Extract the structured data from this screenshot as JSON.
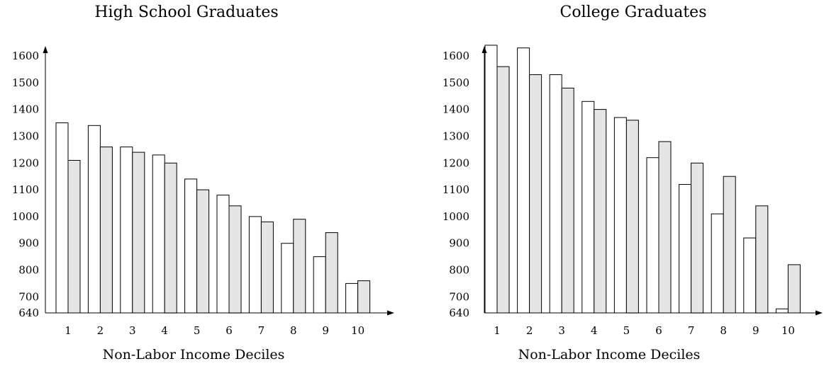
{
  "colors": {
    "bar_a": "#ffffff",
    "bar_b": "#e5e5e5",
    "stroke": "#000000"
  },
  "chart_data": [
    {
      "type": "bar",
      "title": "High School Graduates",
      "xlabel": "Non-Labor Income Deciles",
      "ylabel": "",
      "categories": [
        "1",
        "2",
        "3",
        "4",
        "5",
        "6",
        "7",
        "8",
        "9",
        "10"
      ],
      "series": [
        {
          "values": [
            1350,
            1340,
            1260,
            1230,
            1140,
            1080,
            1000,
            900,
            850,
            750
          ]
        },
        {
          "values": [
            1210,
            1260,
            1240,
            1200,
            1100,
            1040,
            980,
            990,
            940,
            760
          ]
        }
      ],
      "ylim": [
        640,
        1600
      ],
      "yticks": [
        "640",
        "700",
        "800",
        "900",
        "1000",
        "1100",
        "1200",
        "1300",
        "1400",
        "1500",
        "1600"
      ],
      "grid": false,
      "legend": "none"
    },
    {
      "type": "bar",
      "title": "College Graduates",
      "xlabel": "Non-Labor Income Deciles",
      "ylabel": "",
      "categories": [
        "1",
        "2",
        "3",
        "4",
        "5",
        "6",
        "7",
        "8",
        "9",
        "10"
      ],
      "series": [
        {
          "values": [
            1640,
            1630,
            1530,
            1430,
            1370,
            1220,
            1120,
            1010,
            920,
            655
          ]
        },
        {
          "values": [
            1560,
            1530,
            1480,
            1400,
            1360,
            1280,
            1200,
            1150,
            1040,
            820
          ]
        }
      ],
      "ylim": [
        640,
        1600
      ],
      "yticks": [
        "640",
        "700",
        "800",
        "900",
        "1000",
        "1100",
        "1200",
        "1300",
        "1400",
        "1500",
        "1600"
      ],
      "grid": false,
      "legend": "none"
    }
  ]
}
